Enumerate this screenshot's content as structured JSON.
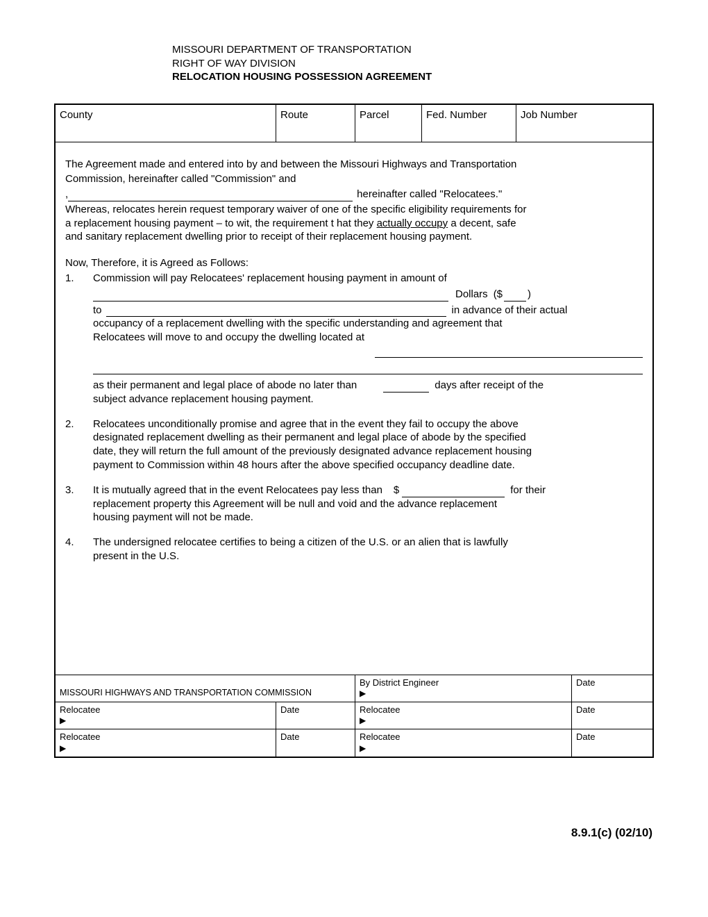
{
  "header": {
    "line1": "MISSOURI DEPARTMENT OF TRANSPORTATION",
    "line2": "RIGHT OF WAY DIVISION",
    "line3": "RELOCATION HOUSING POSSESSION AGREEMENT"
  },
  "top": {
    "county": "County",
    "route": "Route",
    "parcel": "Parcel",
    "fed": "Fed. Number",
    "job": "Job Number"
  },
  "intro": {
    "p1a": "The Agreement made and entered into by and between the Missouri Highways and Transportation",
    "p1b": "Commission, hereinafter called \"Commission\" and",
    "comma": ",",
    "after_name": "hereinafter called \"Relocatees.\"",
    "whereas_a": "Whereas, relocates herein request temporary waiver of one of the specific eligibility requirements for",
    "whereas_b": "a replacement housing payment – to wit, the requirement t hat they ",
    "actually_occupy": "actually occupy",
    "whereas_c": " a decent, safe",
    "whereas_d": "and sanitary replacement dwelling prior to receipt of their replacement housing payment."
  },
  "now": "Now, Therefore, it is Agreed as Follows:",
  "item1": {
    "num": "1.",
    "line1": "Commission will pay Relocatees' replacement housing payment in amount of",
    "dollars": "Dollars",
    "paren_open": "($",
    "paren_close": ")",
    "to": "to",
    "advance": "in advance of their actual",
    "occ1": "occupancy of a replacement dwelling with the specific understanding and agreement that",
    "occ2": "Relocatees will move to and occupy the dwelling located at",
    "days_pre": "as their permanent and legal place of abode no later than",
    "days_post": "days after receipt of the",
    "subject": "subject advance replacement housing payment."
  },
  "item2": {
    "num": "2.",
    "l1": "Relocatees unconditionally promise and agree that in the event they fail to occupy the above",
    "l2": "designated replacement dwelling as their permanent and legal place of abode by the specified",
    "l3": "date, they will return the full amount of the previously designated advance replacement housing",
    "l4": "payment to Commission within 48 hours after the above specified occupancy deadline date."
  },
  "item3": {
    "num": "3.",
    "pre": "It is mutually agreed that in the event Relocatees pay less than",
    "d": "$",
    "post": "for their",
    "l2": "replacement property this Agreement will be null and void and the advance replacement",
    "l3": "housing payment will not be made."
  },
  "item4": {
    "num": "4.",
    "l1": "The undersigned relocatee certifies to being a citizen of the U.S. or an alien that is lawfully",
    "l2": "present in the U.S."
  },
  "sig": {
    "commission": "MISSOURI HIGHWAYS AND TRANSPORTATION COMMISSION",
    "engineer": "By District Engineer",
    "date": "Date",
    "relocatee": "Relocatee",
    "marker": "▶"
  },
  "footer": "8.9.1(c) (02/10)"
}
